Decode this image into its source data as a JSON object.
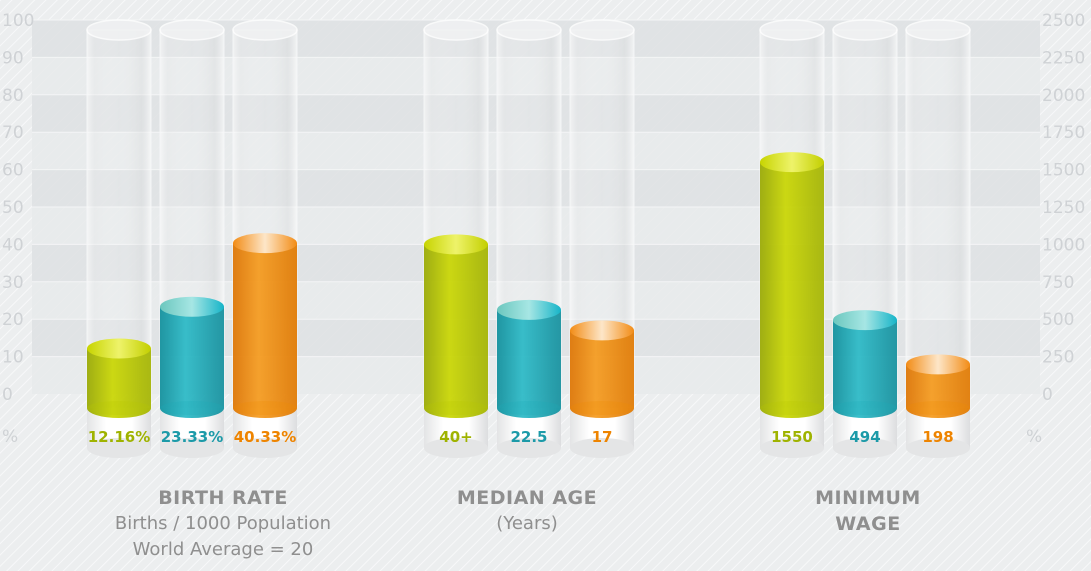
{
  "chart_data": {
    "type": "bar",
    "left_axis": {
      "ticks": [
        "100",
        "90",
        "80",
        "70",
        "60",
        "50",
        "40",
        "30",
        "20",
        "10",
        "0"
      ],
      "unit": "%",
      "ylim": [
        0,
        100
      ]
    },
    "right_axis": {
      "ticks": [
        "2500",
        "2250",
        "2000",
        "1750",
        "1500",
        "1250",
        "1000",
        "750",
        "500",
        "250",
        "0"
      ],
      "unit": "%",
      "ylim": [
        0,
        2500
      ]
    },
    "grid": true,
    "colors": {
      "green": "#b7c700",
      "teal": "#1aaab8",
      "orange": "#f08a00"
    },
    "groups": [
      {
        "title": "BIRTH RATE",
        "subtitle_lines": [
          "Births / 1000 Population",
          "World Average = 20"
        ],
        "bars": [
          {
            "color": "green",
            "value": 12.16,
            "label": "12.16%"
          },
          {
            "color": "teal",
            "value": 23.33,
            "label": "23.33%"
          },
          {
            "color": "orange",
            "value": 40.33,
            "label": "40.33%"
          }
        ]
      },
      {
        "title": "MEDIAN AGE",
        "subtitle_lines": [
          "(Years)"
        ],
        "bars": [
          {
            "color": "green",
            "value": 40,
            "label": "40+"
          },
          {
            "color": "teal",
            "value": 22.5,
            "label": "22.5"
          },
          {
            "color": "orange",
            "value": 17,
            "label": "17"
          }
        ]
      },
      {
        "title_lines": [
          "MINIMUM",
          "WAGE"
        ],
        "bars": [
          {
            "color": "green",
            "value": 1550,
            "label": "1550",
            "axis": "right"
          },
          {
            "color": "teal",
            "value": 494,
            "label": "494",
            "axis": "right"
          },
          {
            "color": "orange",
            "value": 198,
            "label": "198",
            "axis": "right"
          }
        ]
      }
    ]
  }
}
